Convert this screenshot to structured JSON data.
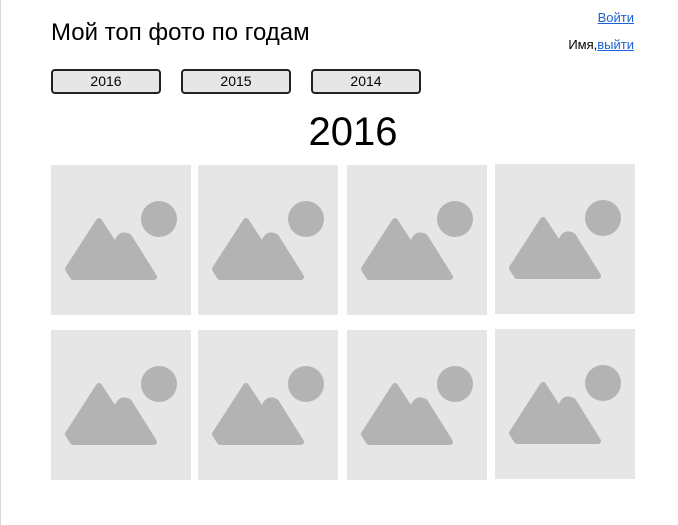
{
  "header": {
    "title": "Мой топ фото по годам",
    "login_label": "Войти",
    "user_name": "Имя,",
    "logout_label": "выйти"
  },
  "year_tabs": [
    {
      "label": "2016"
    },
    {
      "label": "2015"
    },
    {
      "label": "2014"
    }
  ],
  "section": {
    "year": "2016"
  },
  "photos": {
    "icon": "image-placeholder-icon",
    "count": 8
  },
  "colors": {
    "placeholder_bg": "#e6e6e6",
    "placeholder_icon": "#b3b3b3",
    "link": "#1a62d6"
  }
}
